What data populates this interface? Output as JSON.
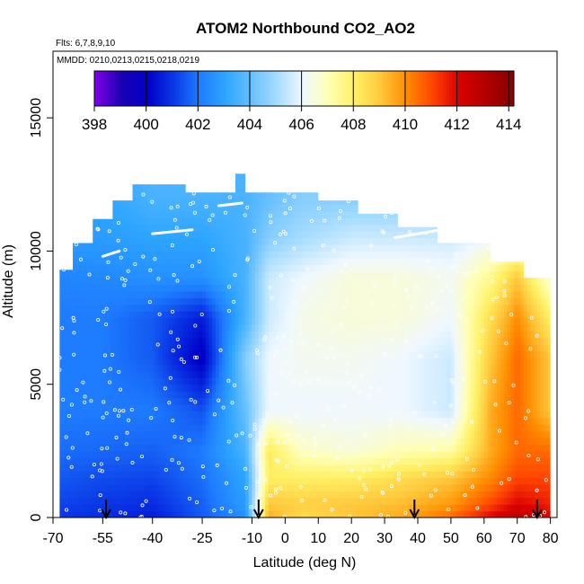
{
  "chart_data": {
    "type": "heatmap",
    "title": "ATOM2 Northbound CO2_AO2",
    "subtitle_flights": "Flts: 6,7,8,9,10",
    "subtitle_dates": "MMDD: 0210,0213,0215,0218,0219",
    "xlabel": "Latitude (deg N)",
    "ylabel": "Altitude (m)",
    "xlim": [
      -70,
      82
    ],
    "ylim": [
      0,
      17500
    ],
    "x_ticks": [
      -70,
      -55,
      -40,
      -25,
      -10,
      0,
      10,
      20,
      30,
      40,
      50,
      60,
      70,
      80
    ],
    "y_ticks": [
      0,
      5000,
      10000,
      15000
    ],
    "colorbar": {
      "ticks": [
        398,
        400,
        402,
        404,
        406,
        408,
        410,
        412,
        414
      ],
      "range": [
        398,
        414.2
      ],
      "placement": "top-inset"
    },
    "colors": {
      "398": "#7d00e6",
      "399": "#1a00b3",
      "400": "#0000c8",
      "401": "#0a37e6",
      "402": "#1e7cff",
      "403": "#2da5ff",
      "404": "#66bfff",
      "405": "#a6dcff",
      "406": "#f0f8ff",
      "407": "#ffffb4",
      "408": "#fff064",
      "409": "#ffc83c",
      "410": "#ff8c00",
      "411": "#ff4600",
      "412": "#dc0000",
      "413": "#b40000",
      "414": "#8c0000"
    },
    "flight_markers_lat": [
      -54,
      -8,
      39,
      76
    ],
    "curtain_grid": {
      "lat_nodes": [
        -70,
        -55,
        -40,
        -25,
        -12,
        -5,
        5,
        20,
        35,
        50,
        62,
        70,
        80
      ],
      "alt_nodes": [
        0,
        500,
        1500,
        2500,
        4000,
        6000,
        7500,
        9000,
        10500,
        12000
      ],
      "co2": [
        [
          401.0,
          400.8,
          400.5,
          401.5,
          402.5,
          409.5,
          408.5,
          409.0,
          409.5,
          410.5,
          412.0,
          413.0,
          412.0
        ],
        [
          401.2,
          401.0,
          400.8,
          401.6,
          402.8,
          409.0,
          408.8,
          409.0,
          409.2,
          409.8,
          411.0,
          412.0,
          411.5
        ],
        [
          401.5,
          401.3,
          401.2,
          401.8,
          403.0,
          408.0,
          408.0,
          408.0,
          408.5,
          409.0,
          410.0,
          411.0,
          411.0
        ],
        [
          401.8,
          401.7,
          401.6,
          402.0,
          403.5,
          408.2,
          406.8,
          406.5,
          407.0,
          407.2,
          409.5,
          410.5,
          410.5
        ],
        [
          402.0,
          402.0,
          402.0,
          401.4,
          404.0,
          406.0,
          406.0,
          406.0,
          406.0,
          405.5,
          409.5,
          410.5,
          409.0
        ],
        [
          402.0,
          402.0,
          401.5,
          399.8,
          404.5,
          406.0,
          406.2,
          406.2,
          406.0,
          405.5,
          409.0,
          410.5,
          409.0
        ],
        [
          402.0,
          402.0,
          401.5,
          400.5,
          403.5,
          405.5,
          406.3,
          406.5,
          406.5,
          406.0,
          408.5,
          410.0,
          408.0
        ],
        [
          402.2,
          402.3,
          402.5,
          402.5,
          403.5,
          405.5,
          406.0,
          406.5,
          406.5,
          406.2,
          407.5,
          409.0,
          406.5
        ],
        [
          402.8,
          402.8,
          403.0,
          403.0,
          403.5,
          404.5,
          405.0,
          405.5,
          405.5,
          405.5,
          406.0,
          406.5,
          406.0
        ],
        [
          403.0,
          403.0,
          403.5,
          403.5,
          403.5,
          404.0,
          404.5,
          404.5,
          404.5,
          404.5,
          404.5,
          405.0,
          405.0
        ]
      ]
    }
  }
}
